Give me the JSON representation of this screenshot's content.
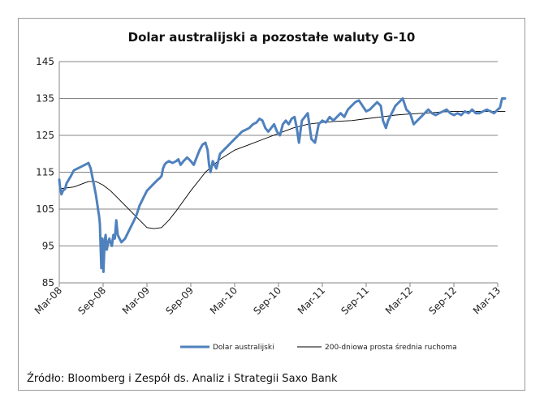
{
  "chart_data": {
    "type": "line",
    "title": "Dolar australijski a pozostałe waluty G-10",
    "xlabel": "",
    "ylabel": "",
    "ylim": [
      85,
      145
    ],
    "y_ticks": [
      "145",
      "135",
      "125",
      "115",
      "105",
      "95",
      "85"
    ],
    "x_ticks": [
      "Mar-08",
      "Sep-08",
      "Mar-09",
      "Sep-09",
      "Mar-10",
      "Sep-10",
      "Mar-11",
      "Sep-11",
      "Mar-12",
      "Sep-12",
      "Mar-13"
    ],
    "grid": "horizontal",
    "legend_position": "bottom",
    "source": "Źródło: Bloomberg i Zespół ds. Analiz i Strategii Saxo Bank",
    "colors": {
      "aud": "#4f81bd",
      "ma": "#000000",
      "grid": "#868686"
    },
    "series": [
      {
        "name": "Dolar australijski",
        "style": "thick",
        "x": [
          0,
          0.1,
          0.3,
          0.5,
          0.8,
          1.0,
          1.3,
          1.6,
          2.0,
          2.5,
          3.0,
          3.5,
          4.0,
          4.3,
          4.6,
          4.8,
          5.0,
          5.15,
          5.3,
          5.45,
          5.55,
          5.65,
          5.75,
          5.9,
          6.05,
          6.2,
          6.35,
          6.5,
          6.7,
          6.85,
          7.0,
          7.2,
          7.4,
          7.6,
          7.8,
          8.0,
          8.5,
          9.0,
          9.5,
          10.0,
          10.5,
          11.0,
          11.5,
          12.0,
          12.5,
          13.0,
          13.5,
          13.8,
          14.0,
          14.2,
          14.4,
          14.6,
          15.0,
          15.5,
          16.0,
          16.3,
          16.6,
          17.0,
          17.5,
          18.0,
          18.4,
          18.8,
          19.2,
          19.6,
          20.0,
          20.3,
          20.5,
          20.7,
          21.0,
          21.5,
          22.0,
          22.5,
          23.0,
          23.5,
          24.0,
          24.5,
          25.0,
          25.5,
          26.0,
          26.5,
          27.0,
          27.4,
          27.8,
          28.2,
          28.6,
          29.0,
          29.4,
          29.8,
          30.2,
          30.6,
          31.0,
          31.4,
          31.8,
          32.2,
          32.5,
          32.8,
          33.2,
          33.6,
          34.0,
          34.5,
          35.0,
          35.5,
          36.0,
          36.5,
          37.0,
          37.5,
          38.0,
          38.5,
          39.0,
          39.5,
          40.0,
          40.5,
          41.0,
          41.5,
          42.0,
          42.5,
          43.0,
          43.5,
          44.0,
          44.3,
          44.5,
          44.7,
          45.0,
          45.5,
          46.0,
          46.5,
          47.0,
          47.5,
          48.0,
          48.5,
          49.0,
          49.5,
          50.0,
          50.5,
          51.0,
          51.5,
          52.0,
          52.5,
          53.0,
          53.5,
          54.0,
          54.5,
          55.0,
          55.5,
          56.0,
          56.5,
          57.0,
          57.5,
          58.0,
          58.5,
          59.0,
          59.5,
          60.0,
          60.3,
          60.6,
          61.0
        ],
        "values": [
          113,
          111,
          109,
          110,
          110.5,
          112,
          113,
          114,
          115.5,
          116,
          116.5,
          117,
          117.5,
          116,
          113,
          111,
          109,
          107,
          105,
          103,
          101,
          95,
          89,
          97,
          88,
          96,
          98,
          94,
          96,
          97,
          96,
          95,
          98,
          97,
          102,
          98,
          96,
          97,
          99,
          101,
          103,
          106,
          108,
          110,
          111,
          112,
          113,
          113.5,
          114,
          116,
          117,
          117.5,
          118,
          117.5,
          118,
          118.5,
          117,
          118,
          119,
          118,
          117,
          119,
          121,
          122.5,
          123,
          121,
          117,
          115,
          118,
          116,
          120,
          121,
          122,
          123,
          124,
          125,
          126,
          126.5,
          127,
          128,
          128.5,
          129.5,
          129,
          127,
          126,
          127,
          128,
          126,
          125,
          128,
          129,
          128,
          129.5,
          130,
          127,
          123,
          129,
          130,
          131,
          124,
          123,
          128,
          129,
          128.5,
          130,
          129,
          130,
          131,
          130,
          132,
          133,
          134,
          134.5,
          133,
          131.5,
          132,
          133,
          134,
          133,
          129,
          128,
          127,
          129,
          131,
          133,
          134,
          135,
          132,
          131,
          128,
          129,
          130,
          131,
          132,
          131,
          130.5,
          131,
          131.5,
          132,
          131,
          130.5,
          131,
          130.5,
          131.5,
          131,
          132,
          131,
          131,
          131.5,
          132,
          131.5,
          131,
          132,
          132.5,
          135,
          135
        ]
      },
      {
        "name": "200-dniowa prosta średnia ruchoma",
        "style": "thin",
        "x": [
          0,
          2,
          4,
          5,
          6,
          7,
          8,
          9,
          10,
          11,
          12,
          13,
          14,
          15,
          16,
          18,
          20,
          22,
          24,
          26,
          28,
          30,
          32,
          34,
          36,
          38,
          40,
          42,
          44,
          46,
          48,
          50,
          52,
          54,
          56,
          58,
          60,
          61
        ],
        "values": [
          110.5,
          111,
          112.5,
          112.5,
          111.5,
          110,
          108,
          106,
          104,
          102,
          100,
          99.7,
          100,
          102,
          104.5,
          110,
          115,
          118.5,
          121,
          122.5,
          124,
          125.5,
          127,
          128,
          128.5,
          128.8,
          129,
          129.5,
          130,
          130.5,
          130.8,
          131,
          131.3,
          131.5,
          131.5,
          131.5,
          131.5,
          131.5
        ]
      }
    ]
  }
}
